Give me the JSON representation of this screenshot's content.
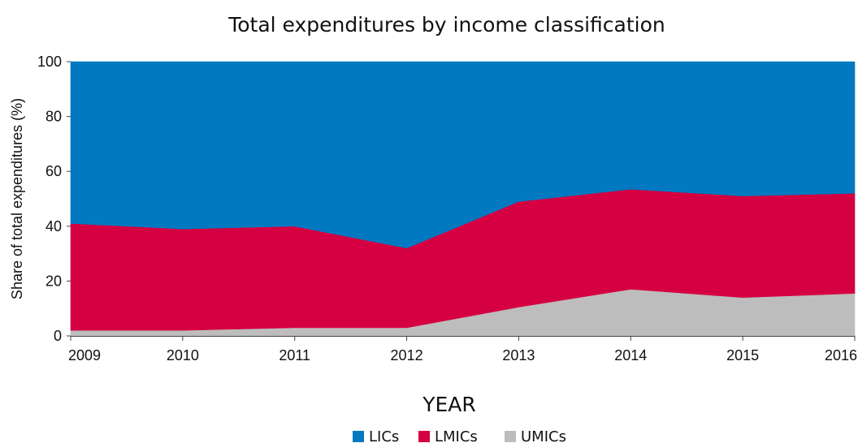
{
  "chart_data": {
    "type": "area",
    "stacked": true,
    "percent_stacked": true,
    "title": "Total expenditures by income classification",
    "xlabel": "YEAR",
    "ylabel": "Share of total expenditures (%)",
    "x": [
      "2009",
      "2010",
      "2011",
      "2012",
      "2013",
      "2014",
      "2015",
      "2016"
    ],
    "ylim": [
      0,
      100
    ],
    "yticks": [
      "0",
      "20",
      "40",
      "60",
      "80",
      "100"
    ],
    "grid": false,
    "legend_position": "bottom",
    "series": [
      {
        "name": "UMICs",
        "color": "#bdbdbd",
        "values": [
          2,
          2,
          3,
          3,
          10.5,
          17,
          14,
          15.5
        ]
      },
      {
        "name": "LMICs",
        "color": "#d50041",
        "values": [
          39,
          37,
          37,
          29,
          38.5,
          36.5,
          37,
          36.5
        ]
      },
      {
        "name": "LICs",
        "color": "#0079c1",
        "values": [
          59,
          61,
          60,
          68,
          51,
          46.5,
          49,
          48
        ]
      }
    ],
    "legend": [
      {
        "name": "LICs",
        "color": "#0079c1"
      },
      {
        "name": "LMICs",
        "color": "#d50041"
      },
      {
        "name": "UMICs",
        "color": "#bdbdbd"
      }
    ]
  }
}
